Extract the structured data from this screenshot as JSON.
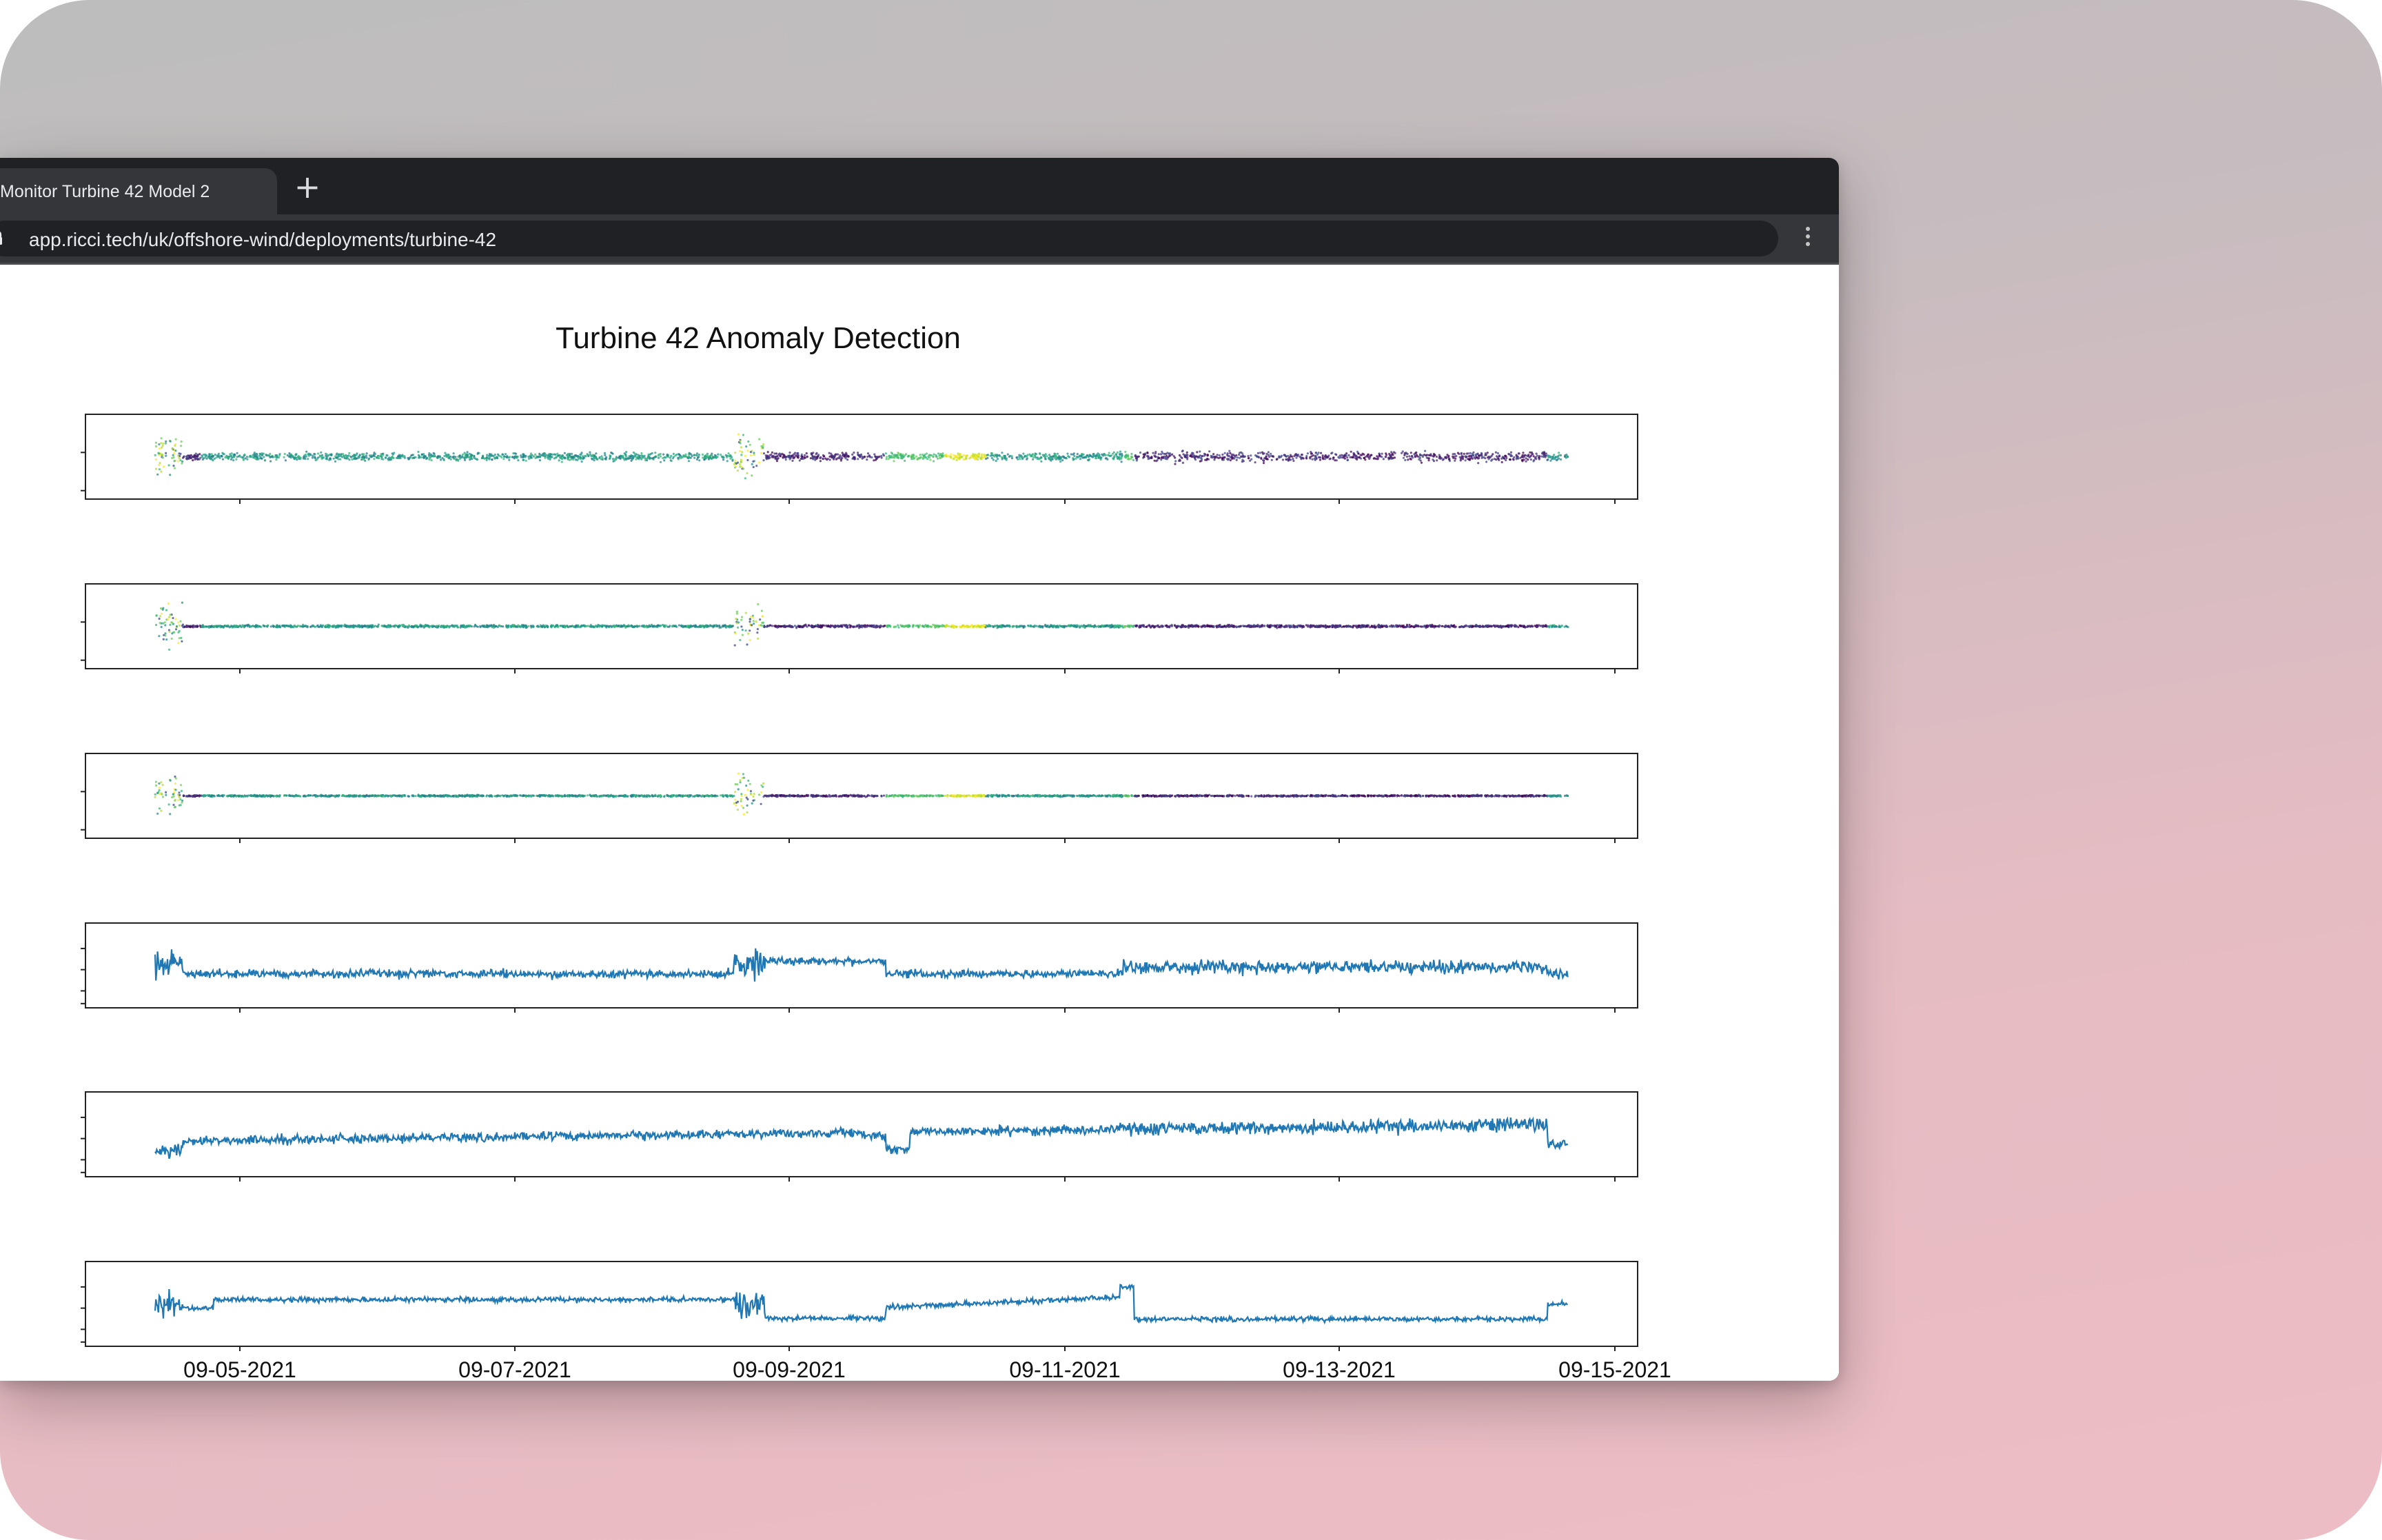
{
  "browser": {
    "tab_title": "Monitor Turbine 42 Model 2",
    "new_tab_symbol": "+",
    "url": "app.ricci.tech/uk/offshore-wind/deployments/turbine-42",
    "icons": [
      "lock-icon",
      "more-vert-icon",
      "plus-icon"
    ]
  },
  "chart_data": {
    "type": "scatter",
    "title": "Turbine 42 Anomaly Detection",
    "x_tick_labels": [
      "09-05-2021",
      "09-07-2021",
      "09-09-2021",
      "09-11-2021",
      "09-13-2021",
      "09-15-2021"
    ],
    "x_range": [
      "09-04-2021",
      "09-15-2021"
    ],
    "colormap": "viridis",
    "panels": [
      {
        "kind": "scatter",
        "description_hidden": true
      },
      {
        "kind": "scatter"
      },
      {
        "kind": "scatter"
      },
      {
        "kind": "line",
        "color": "#1f77b4"
      },
      {
        "kind": "line",
        "color": "#1f77b4"
      },
      {
        "kind": "line",
        "color": "#1f77b4"
      }
    ]
  }
}
